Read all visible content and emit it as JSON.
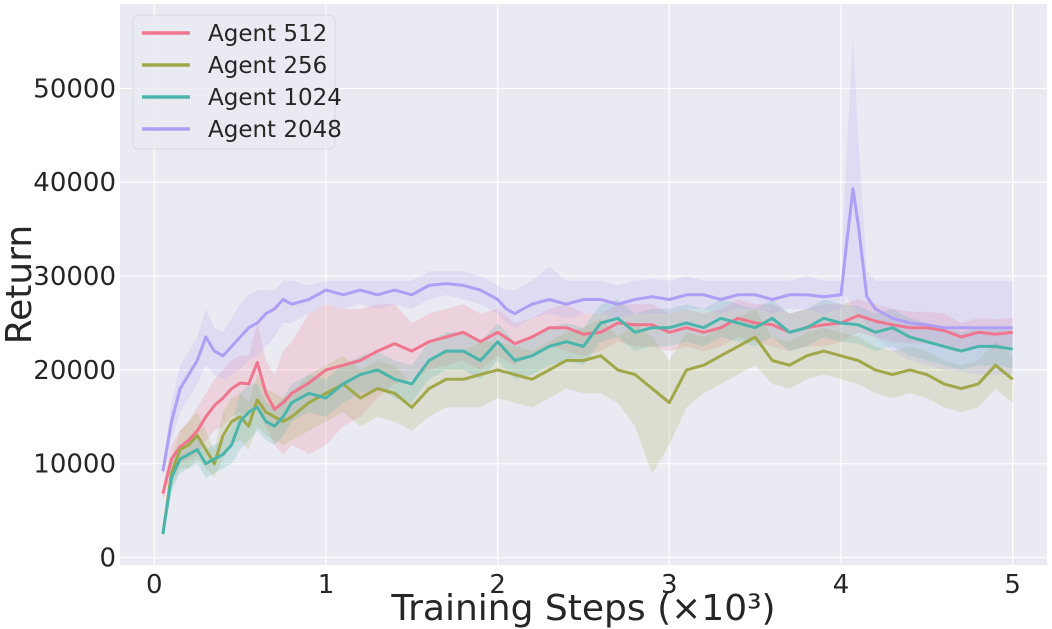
{
  "chart_data": {
    "type": "line",
    "title": "",
    "xlabel": "Training Steps (×10³)",
    "ylabel": "Return",
    "xlim": [
      -0.2,
      5.2
    ],
    "ylim": [
      -800,
      59000
    ],
    "xticks": [
      0,
      1,
      2,
      3,
      4,
      5
    ],
    "xtick_labels": [
      "0",
      "1",
      "2",
      "3",
      "4",
      "5"
    ],
    "yticks": [
      0,
      10000,
      20000,
      30000,
      40000,
      50000
    ],
    "ytick_labels": [
      "0",
      "10000",
      "20000",
      "30000",
      "40000",
      "50000"
    ],
    "grid": true,
    "legend_position": "top-left",
    "background": "#eaeaf2",
    "series": [
      {
        "name": "Agent 512",
        "color": "#f0758e",
        "x": [
          0.05,
          0.1,
          0.15,
          0.2,
          0.25,
          0.3,
          0.35,
          0.4,
          0.45,
          0.5,
          0.55,
          0.6,
          0.65,
          0.7,
          0.75,
          0.8,
          0.9,
          1.0,
          1.1,
          1.2,
          1.3,
          1.4,
          1.5,
          1.6,
          1.7,
          1.8,
          1.9,
          2.0,
          2.1,
          2.2,
          2.3,
          2.4,
          2.5,
          2.6,
          2.7,
          2.8,
          2.9,
          3.0,
          3.1,
          3.2,
          3.3,
          3.4,
          3.5,
          3.6,
          3.7,
          3.8,
          3.9,
          4.0,
          4.1,
          4.2,
          4.3,
          4.4,
          4.5,
          4.6,
          4.7,
          4.8,
          4.9,
          5.0
        ],
        "y": [
          6800,
          10500,
          11800,
          12500,
          13500,
          15000,
          16200,
          17000,
          18000,
          18600,
          18500,
          20800,
          17500,
          15800,
          16500,
          17500,
          18600,
          20000,
          20500,
          21000,
          22000,
          22800,
          22000,
          23000,
          23500,
          24000,
          23000,
          24000,
          22800,
          23500,
          24500,
          24500,
          23800,
          24000,
          25000,
          24800,
          24800,
          24000,
          24500,
          24000,
          24500,
          25500,
          25000,
          24800,
          24000,
          24500,
          24800,
          25000,
          25800,
          25200,
          24800,
          24500,
          24500,
          24200,
          23500,
          24000,
          23800,
          24000
        ],
        "lower": [
          6000,
          9000,
          10000,
          10500,
          11000,
          12500,
          13500,
          14000,
          15000,
          15500,
          15000,
          16000,
          14000,
          12000,
          11000,
          12000,
          11000,
          12000,
          14000,
          15000,
          17000,
          18500,
          19000,
          20000,
          20500,
          21000,
          20000,
          21500,
          20500,
          21500,
          22500,
          22000,
          21500,
          22000,
          23000,
          22500,
          22500,
          22000,
          22500,
          22000,
          22500,
          23500,
          23000,
          22500,
          22000,
          22500,
          22500,
          23000,
          24000,
          23500,
          23000,
          22800,
          22800,
          22500,
          22000,
          22500,
          22200,
          22500
        ],
        "upper": [
          7600,
          12000,
          13500,
          14500,
          16000,
          17500,
          19000,
          20000,
          21000,
          21500,
          21500,
          25000,
          21000,
          19500,
          22000,
          23000,
          26000,
          27000,
          26500,
          26500,
          27000,
          27000,
          25000,
          26000,
          26500,
          27000,
          26000,
          26500,
          25000,
          25500,
          26500,
          27000,
          26000,
          26000,
          27000,
          27000,
          27000,
          26000,
          26500,
          26000,
          26500,
          27500,
          27000,
          27000,
          26000,
          26500,
          27000,
          27000,
          27500,
          27000,
          26500,
          26200,
          26200,
          26000,
          25000,
          25500,
          25400,
          25500
        ]
      },
      {
        "name": "Agent 256",
        "color": "#a0a84a",
        "x": [
          0.05,
          0.1,
          0.15,
          0.2,
          0.25,
          0.3,
          0.35,
          0.4,
          0.45,
          0.5,
          0.55,
          0.6,
          0.65,
          0.7,
          0.75,
          0.8,
          0.9,
          1.0,
          1.1,
          1.2,
          1.3,
          1.4,
          1.5,
          1.6,
          1.7,
          1.8,
          1.9,
          2.0,
          2.1,
          2.2,
          2.3,
          2.4,
          2.5,
          2.6,
          2.7,
          2.8,
          2.9,
          3.0,
          3.1,
          3.2,
          3.3,
          3.4,
          3.5,
          3.6,
          3.7,
          3.8,
          3.9,
          4.0,
          4.1,
          4.2,
          4.3,
          4.4,
          4.5,
          4.6,
          4.7,
          4.8,
          4.9,
          5.0
        ],
        "y": [
          2500,
          9000,
          11500,
          12000,
          13000,
          11500,
          10000,
          13000,
          14500,
          15000,
          14000,
          16800,
          15500,
          15000,
          14500,
          15000,
          16500,
          17500,
          18500,
          17000,
          18000,
          17500,
          16000,
          18000,
          19000,
          19000,
          19500,
          20000,
          19500,
          19000,
          20000,
          21000,
          21000,
          21500,
          20000,
          19500,
          18000,
          16500,
          20000,
          20500,
          21500,
          22500,
          23500,
          21000,
          20500,
          21500,
          22000,
          21500,
          21000,
          20000,
          19500,
          20000,
          19500,
          18500,
          18000,
          18500,
          20500,
          19000
        ],
        "lower": [
          2200,
          7500,
          9500,
          9500,
          10500,
          9500,
          8500,
          10500,
          12000,
          12500,
          11500,
          14000,
          13000,
          12500,
          12000,
          12500,
          13500,
          14500,
          15500,
          14000,
          15000,
          14500,
          13500,
          15000,
          16000,
          16000,
          16000,
          17000,
          16500,
          16000,
          17000,
          18000,
          17500,
          17500,
          16500,
          14000,
          9000,
          12000,
          16000,
          17500,
          18500,
          19500,
          20500,
          18500,
          18000,
          19000,
          19500,
          19000,
          18500,
          17500,
          17000,
          17500,
          17000,
          16000,
          15500,
          16000,
          18000,
          16500
        ],
        "upper": [
          2800,
          10500,
          13500,
          14500,
          15500,
          13500,
          11500,
          15500,
          17000,
          17500,
          16500,
          19500,
          18000,
          17500,
          17000,
          17500,
          19500,
          20500,
          21500,
          20000,
          21000,
          20500,
          18500,
          21000,
          22000,
          22000,
          23000,
          23000,
          22500,
          22000,
          23000,
          24000,
          24500,
          25500,
          23500,
          25000,
          23500,
          21000,
          24000,
          23500,
          24500,
          25500,
          26500,
          23500,
          23000,
          24000,
          24500,
          24000,
          23500,
          22500,
          22000,
          22500,
          22000,
          21000,
          20500,
          21000,
          23000,
          21500
        ]
      },
      {
        "name": "Agent 1024",
        "color": "#4bb5ac",
        "x": [
          0.05,
          0.1,
          0.15,
          0.2,
          0.25,
          0.3,
          0.35,
          0.4,
          0.45,
          0.5,
          0.55,
          0.6,
          0.65,
          0.7,
          0.75,
          0.8,
          0.9,
          1.0,
          1.1,
          1.2,
          1.3,
          1.4,
          1.5,
          1.6,
          1.7,
          1.8,
          1.9,
          2.0,
          2.1,
          2.2,
          2.3,
          2.4,
          2.5,
          2.6,
          2.7,
          2.8,
          2.9,
          3.0,
          3.1,
          3.2,
          3.3,
          3.4,
          3.5,
          3.6,
          3.7,
          3.8,
          3.9,
          4.0,
          4.1,
          4.2,
          4.3,
          4.4,
          4.5,
          4.6,
          4.7,
          4.8,
          4.9,
          5.0
        ],
        "y": [
          2500,
          8500,
          10500,
          11000,
          11500,
          10000,
          10500,
          11000,
          12000,
          14500,
          15500,
          16000,
          14500,
          14000,
          15000,
          16500,
          17500,
          17000,
          18500,
          19500,
          20000,
          19000,
          18500,
          21000,
          22000,
          22000,
          21000,
          23000,
          21000,
          21500,
          22500,
          23000,
          22500,
          25000,
          25500,
          24000,
          24500,
          24500,
          25000,
          24500,
          25500,
          25000,
          24500,
          25500,
          24000,
          24500,
          25500,
          25000,
          24800,
          24000,
          24500,
          23500,
          23000,
          22500,
          22000,
          22500,
          22500,
          22200
        ],
        "lower": [
          2200,
          7000,
          9000,
          9500,
          10000,
          8500,
          9000,
          9500,
          10000,
          11500,
          12500,
          13500,
          12500,
          12000,
          13000,
          14500,
          15500,
          15000,
          16500,
          17500,
          18000,
          17000,
          16500,
          19000,
          20000,
          20000,
          19000,
          21000,
          19000,
          19500,
          20500,
          21000,
          20500,
          23000,
          23500,
          22000,
          22500,
          22500,
          23000,
          22500,
          23500,
          23000,
          22500,
          23500,
          22000,
          22500,
          23500,
          23000,
          22800,
          22000,
          22500,
          21500,
          21000,
          20500,
          20000,
          20500,
          20500,
          20200
        ],
        "upper": [
          2800,
          10000,
          12000,
          12500,
          13000,
          11500,
          12000,
          12500,
          14000,
          17500,
          18500,
          18500,
          16500,
          16000,
          17000,
          18500,
          19500,
          19000,
          20500,
          21500,
          22000,
          21000,
          20500,
          23000,
          24000,
          24000,
          23000,
          25000,
          23000,
          23500,
          24500,
          25000,
          24500,
          27000,
          27500,
          26000,
          26500,
          26500,
          27000,
          26500,
          27500,
          27000,
          26500,
          27500,
          26000,
          26500,
          27500,
          27000,
          26800,
          26000,
          26500,
          25500,
          25000,
          24500,
          24000,
          24500,
          24500,
          24200
        ]
      },
      {
        "name": "Agent 2048",
        "color": "#ae9ef5",
        "x": [
          0.05,
          0.1,
          0.15,
          0.2,
          0.25,
          0.3,
          0.35,
          0.4,
          0.45,
          0.5,
          0.55,
          0.6,
          0.65,
          0.7,
          0.75,
          0.8,
          0.9,
          1.0,
          1.1,
          1.2,
          1.3,
          1.4,
          1.5,
          1.6,
          1.7,
          1.8,
          1.9,
          2.0,
          2.05,
          2.1,
          2.2,
          2.3,
          2.4,
          2.5,
          2.6,
          2.7,
          2.8,
          2.9,
          3.0,
          3.1,
          3.2,
          3.3,
          3.4,
          3.5,
          3.6,
          3.7,
          3.8,
          3.9,
          4.0,
          4.03,
          4.07,
          4.1,
          4.15,
          4.2,
          4.3,
          4.4,
          4.5,
          4.6,
          4.7,
          4.8,
          4.9,
          5.0
        ],
        "y": [
          9200,
          14500,
          18000,
          19500,
          21000,
          23500,
          22000,
          21500,
          22500,
          23500,
          24500,
          25000,
          26000,
          26500,
          27500,
          27000,
          27500,
          28500,
          28000,
          28500,
          28000,
          28500,
          28000,
          29000,
          29200,
          29000,
          28500,
          27500,
          26500,
          26000,
          27000,
          27500,
          27000,
          27500,
          27500,
          27000,
          27500,
          27800,
          27500,
          28000,
          28000,
          27500,
          28000,
          28000,
          27500,
          28000,
          28000,
          27800,
          28000,
          33000,
          39300,
          35500,
          27800,
          26500,
          25500,
          25000,
          24800,
          24500,
          24500,
          24500,
          24500,
          24500
        ],
        "lower": [
          8500,
          12500,
          15500,
          17000,
          18500,
          20500,
          19500,
          19000,
          19500,
          20000,
          21000,
          21500,
          22500,
          23500,
          25000,
          25000,
          26000,
          27000,
          26500,
          27000,
          26500,
          27000,
          26500,
          27500,
          28000,
          27500,
          27000,
          26000,
          25000,
          24500,
          25500,
          26000,
          25500,
          26000,
          26000,
          25500,
          26000,
          26000,
          26000,
          26500,
          26500,
          26000,
          26500,
          26500,
          26000,
          26500,
          26500,
          26000,
          26500,
          28000,
          26500,
          26000,
          25000,
          23500,
          22000,
          21000,
          20500,
          20000,
          19800,
          19500,
          19500,
          19500
        ],
        "upper": [
          10000,
          16500,
          20500,
          22000,
          23500,
          26500,
          24500,
          24000,
          25500,
          27000,
          28000,
          28500,
          28500,
          28500,
          29500,
          29500,
          29000,
          29500,
          29500,
          29500,
          29500,
          29500,
          29500,
          30500,
          30500,
          30500,
          30000,
          29000,
          28500,
          28500,
          29500,
          31000,
          29500,
          29500,
          29500,
          29000,
          29500,
          29700,
          29500,
          30000,
          29500,
          29500,
          29500,
          29500,
          29500,
          29500,
          30000,
          29500,
          29500,
          42000,
          55500,
          45000,
          30500,
          29500,
          29500,
          29500,
          29500,
          29500,
          29500,
          29500,
          29500,
          29500
        ]
      }
    ]
  }
}
